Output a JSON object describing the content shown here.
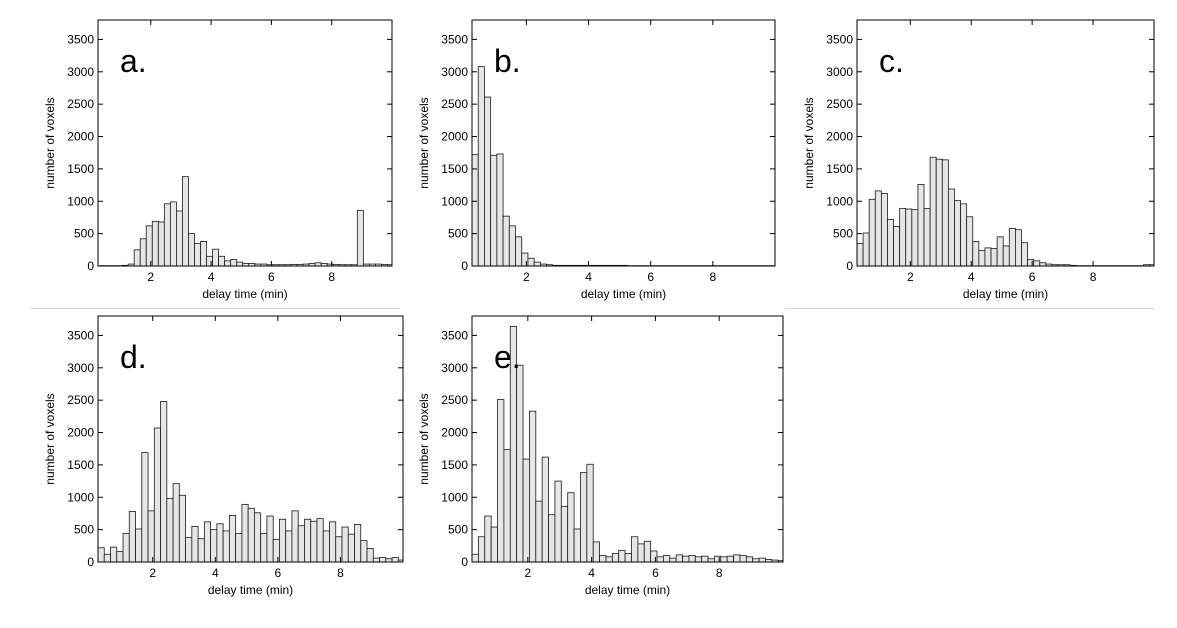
{
  "chart_data": [
    {
      "type": "bar",
      "panel_label": "a.",
      "xlabel": "delay time (min)",
      "ylabel": "number of voxels",
      "xlim": [
        0.25,
        10
      ],
      "ylim": [
        0,
        3800
      ],
      "xticks": [
        2,
        4,
        6,
        8
      ],
      "yticks": [
        0,
        500,
        1000,
        1500,
        2000,
        2500,
        3000,
        3500
      ],
      "bin_width": 0.2,
      "x_start": 0.25,
      "values": [
        5,
        5,
        5,
        5,
        10,
        30,
        250,
        420,
        620,
        690,
        680,
        960,
        990,
        850,
        1380,
        500,
        350,
        380,
        150,
        260,
        150,
        80,
        100,
        60,
        40,
        40,
        30,
        30,
        20,
        20,
        20,
        20,
        25,
        25,
        30,
        40,
        50,
        40,
        30,
        25,
        20,
        20,
        20,
        860,
        30,
        30,
        30,
        25,
        20
      ]
    },
    {
      "type": "bar",
      "panel_label": "b.",
      "xlabel": "delay time (min)",
      "ylabel": "number of voxels",
      "xlim": [
        0.25,
        10
      ],
      "ylim": [
        0,
        3800
      ],
      "xticks": [
        2,
        4,
        6,
        8
      ],
      "yticks": [
        0,
        500,
        1000,
        1500,
        2000,
        2500,
        3000,
        3500
      ],
      "bin_width": 0.2,
      "x_start": 0.25,
      "values": [
        1720,
        3080,
        2610,
        1710,
        1730,
        770,
        620,
        450,
        200,
        120,
        60,
        30,
        20,
        10,
        10,
        10,
        10,
        10,
        10,
        10,
        10,
        10,
        10,
        10,
        10,
        5,
        5,
        5,
        5,
        5,
        5,
        5,
        5,
        5,
        5,
        5,
        5,
        5,
        5,
        5,
        5,
        5,
        5,
        5,
        5,
        5,
        5,
        5,
        5
      ]
    },
    {
      "type": "bar",
      "panel_label": "c.",
      "xlabel": "delay time (min)",
      "ylabel": "number of voxels",
      "xlim": [
        0.25,
        10
      ],
      "ylim": [
        0,
        3800
      ],
      "xticks": [
        2,
        4,
        6,
        8
      ],
      "yticks": [
        0,
        500,
        1000,
        1500,
        2000,
        2500,
        3000,
        3500
      ],
      "bin_width": 0.2,
      "x_start": 0.25,
      "values": [
        350,
        510,
        1030,
        1160,
        1120,
        720,
        610,
        890,
        880,
        870,
        1260,
        890,
        1680,
        1650,
        1640,
        1190,
        1010,
        960,
        760,
        380,
        240,
        280,
        270,
        450,
        310,
        580,
        560,
        360,
        100,
        80,
        50,
        30,
        20,
        20,
        20,
        10,
        5,
        5,
        5,
        5,
        5,
        5,
        5,
        5,
        5,
        5,
        5,
        20,
        20
      ]
    },
    {
      "type": "bar",
      "panel_label": "d.",
      "xlabel": "delay time (min)",
      "ylabel": "number of voxels",
      "xlim": [
        0.25,
        10
      ],
      "ylim": [
        0,
        3800
      ],
      "xticks": [
        2,
        4,
        6,
        8
      ],
      "yticks": [
        0,
        500,
        1000,
        1500,
        2000,
        2500,
        3000,
        3500
      ],
      "bin_width": 0.2,
      "x_start": 0.25,
      "values": [
        220,
        120,
        230,
        160,
        440,
        780,
        510,
        1690,
        790,
        2070,
        2480,
        980,
        1210,
        1030,
        380,
        550,
        360,
        620,
        500,
        590,
        480,
        720,
        440,
        890,
        830,
        760,
        440,
        710,
        350,
        660,
        480,
        790,
        560,
        660,
        630,
        670,
        480,
        620,
        390,
        540,
        430,
        580,
        330,
        210,
        60,
        70,
        50,
        70,
        30
      ]
    },
    {
      "type": "bar",
      "panel_label": "e.",
      "xlabel": "delay time (min)",
      "ylabel": "number of voxels",
      "xlim": [
        0.25,
        10
      ],
      "ylim": [
        0,
        3800
      ],
      "xticks": [
        2,
        4,
        6,
        8
      ],
      "yticks": [
        0,
        500,
        1000,
        1500,
        2000,
        2500,
        3000,
        3500
      ],
      "bin_width": 0.2,
      "x_start": 0.25,
      "values": [
        120,
        390,
        710,
        540,
        2510,
        1740,
        3640,
        3040,
        1590,
        2330,
        940,
        1620,
        730,
        1250,
        860,
        1070,
        510,
        1380,
        1510,
        310,
        100,
        80,
        130,
        180,
        130,
        390,
        280,
        320,
        170,
        80,
        100,
        60,
        110,
        90,
        100,
        80,
        90,
        50,
        90,
        80,
        90,
        110,
        100,
        80,
        50,
        60,
        40,
        30,
        20
      ]
    }
  ]
}
